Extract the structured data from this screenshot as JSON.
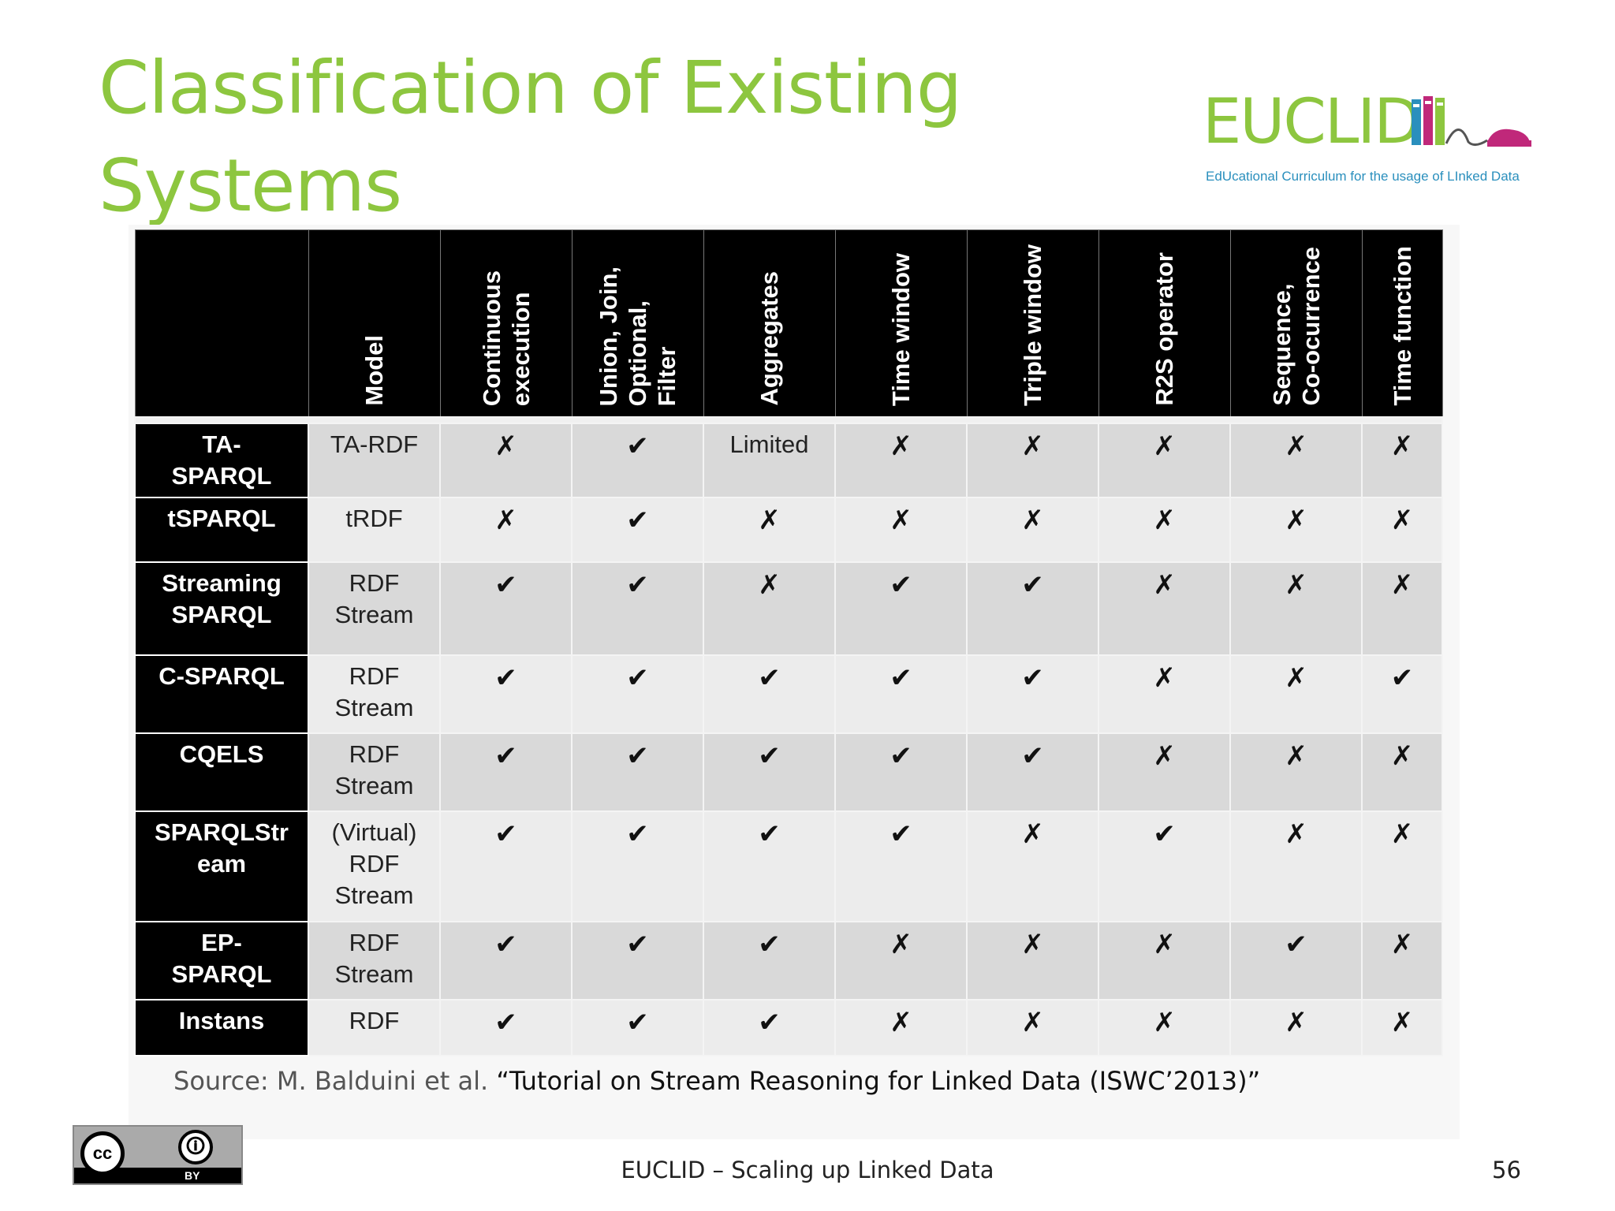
{
  "slide": {
    "title": "Classification of Existing Systems",
    "logo": {
      "word": "EUCLID",
      "tagline": "EdUcational Curriculum for the usage of LInked Data",
      "colors": {
        "green": "#8dc63f",
        "blue": "#2a8fbd",
        "magenta": "#c0287a"
      }
    },
    "source_prefix": "Source: M. Balduini et al. ",
    "source_title": "“Tutorial on Stream Reasoning for Linked Data (ISWC’2013)”",
    "license": {
      "badge_text": "cc",
      "by_label": "BY"
    },
    "footer": "EUCLID – Scaling up Linked Data",
    "page_number": "56"
  },
  "table": {
    "headers": [
      "",
      "Model",
      "Continuous\nexecution",
      "Union, Join,\nOptional,\nFilter",
      "Aggregates",
      "Time window",
      "Triple window",
      "R2S operator",
      "Sequence,\nCo-ocurrence",
      "Time function"
    ],
    "rows": [
      {
        "system": "TA-\nSPARQL",
        "model": "TA-RDF",
        "cells": [
          "✗",
          "✔",
          "Limited",
          "✗",
          "✗",
          "✗",
          "✗",
          "✗"
        ]
      },
      {
        "system": "tSPARQL",
        "model": "tRDF",
        "cells": [
          "✗",
          "✔",
          "✗",
          "✗",
          "✗",
          "✗",
          "✗",
          "✗"
        ]
      },
      {
        "system": "Streaming\nSPARQL",
        "model": "RDF\nStream",
        "cells": [
          "✔",
          "✔",
          "✗",
          "✔",
          "✔",
          "✗",
          "✗",
          "✗"
        ]
      },
      {
        "system": "C-SPARQL",
        "model": "RDF\nStream",
        "cells": [
          "✔",
          "✔",
          "✔",
          "✔",
          "✔",
          "✗",
          "✗",
          "✔"
        ]
      },
      {
        "system": "CQELS",
        "model": "RDF\nStream",
        "cells": [
          "✔",
          "✔",
          "✔",
          "✔",
          "✔",
          "✗",
          "✗",
          "✗"
        ]
      },
      {
        "system": "SPARQLStr\neam",
        "model": "(Virtual)\nRDF\nStream",
        "cells": [
          "✔",
          "✔",
          "✔",
          "✔",
          "✗",
          "✔",
          "✗",
          "✗"
        ]
      },
      {
        "system": "EP-\nSPARQL",
        "model": "RDF\nStream",
        "cells": [
          "✔",
          "✔",
          "✔",
          "✗",
          "✗",
          "✗",
          "✔",
          "✗"
        ]
      },
      {
        "system": "Instans",
        "model": "RDF",
        "cells": [
          "✔",
          "✔",
          "✔",
          "✗",
          "✗",
          "✗",
          "✗",
          "✗"
        ]
      }
    ]
  }
}
